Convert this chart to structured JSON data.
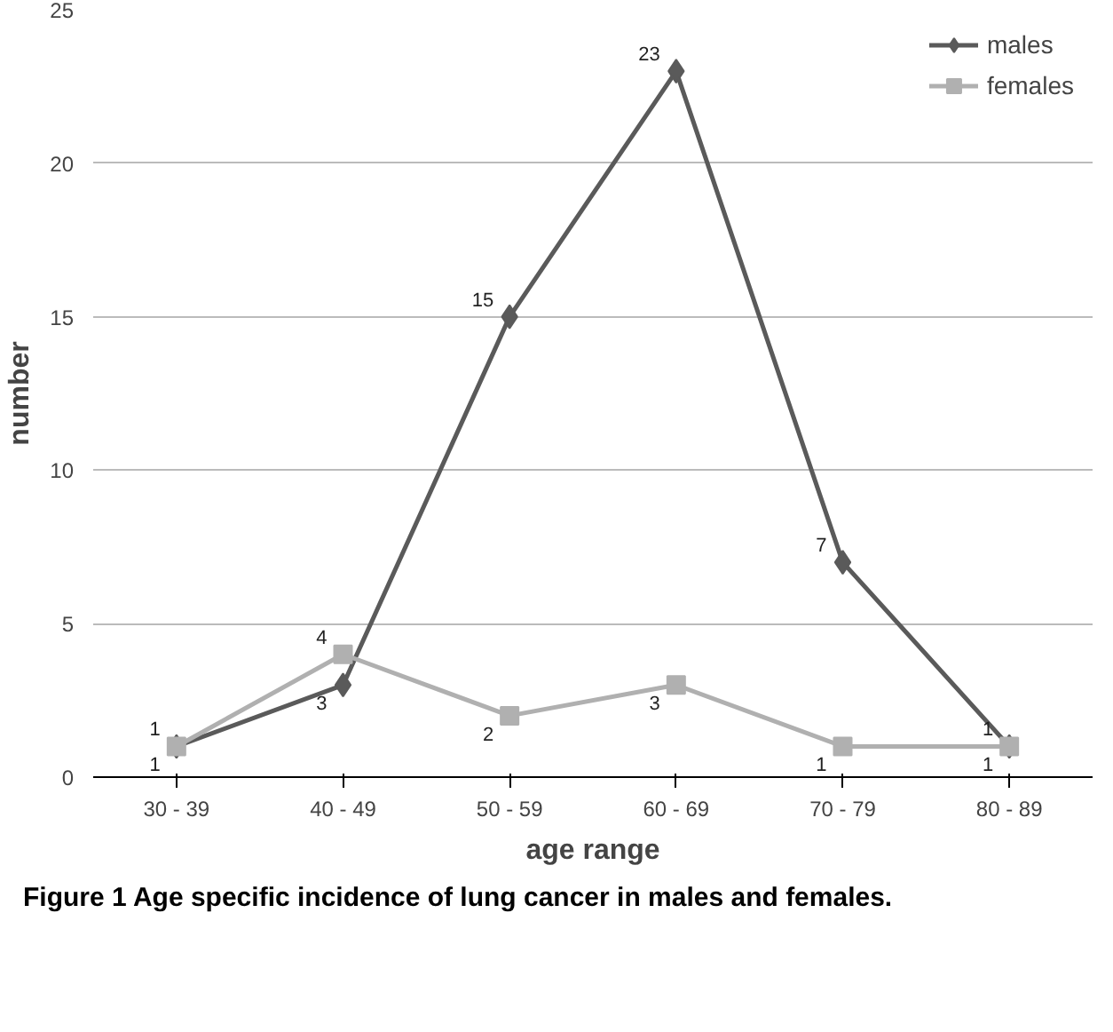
{
  "chart_data": {
    "type": "line",
    "xlabel": "age range",
    "ylabel": "number",
    "categories": [
      "30 - 39",
      "40 - 49",
      "50 - 59",
      "60 - 69",
      "70 - 79",
      "80 - 89"
    ],
    "series": [
      {
        "name": "males",
        "color": "#5a5a5a",
        "marker": "diamond",
        "values": [
          1,
          3,
          15,
          23,
          7,
          1
        ]
      },
      {
        "name": "females",
        "color": "#b0b0b0",
        "marker": "square",
        "values": [
          1,
          4,
          2,
          3,
          1,
          1
        ]
      }
    ],
    "ylim": [
      0,
      25
    ],
    "yticks": [
      0,
      5,
      10,
      15,
      20,
      25
    ],
    "grid": "y",
    "legend": "top right",
    "data_labels": true,
    "line_style": "solid",
    "annotations": [
      "Figure 1 Age specific incidence of lung cancer in males and females."
    ]
  }
}
